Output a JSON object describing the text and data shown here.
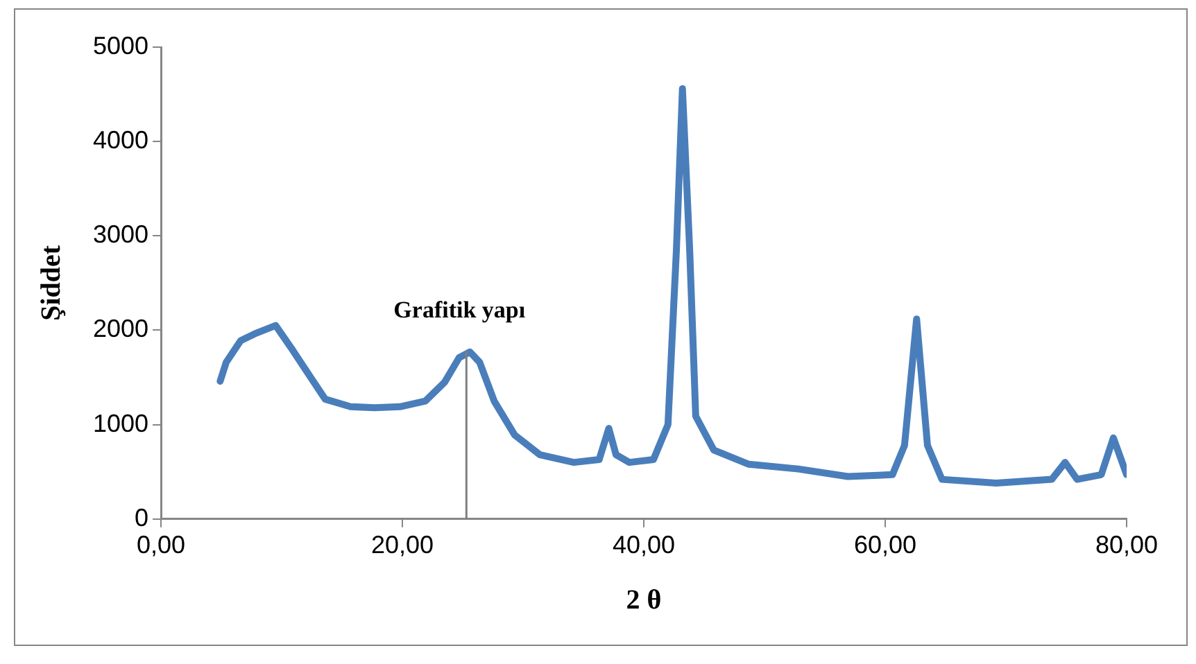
{
  "chart_data": {
    "type": "line",
    "xlabel": "2 θ",
    "ylabel": "Şiddet",
    "x": [
      4.9,
      5.4,
      6.6,
      7.9,
      9.5,
      10.8,
      12.4,
      13.6,
      15.7,
      17.7,
      19.8,
      21.9,
      23.5,
      24.7,
      25.6,
      26.4,
      27.6,
      29.3,
      31.4,
      34.2,
      36.3,
      37.1,
      37.7,
      38.8,
      40.8,
      42.0,
      42.7,
      43.2,
      43.8,
      44.3,
      45.8,
      48.7,
      52.8,
      56.9,
      60.6,
      61.6,
      62.6,
      63.5,
      64.7,
      69.2,
      73.8,
      74.9,
      75.9,
      77.9,
      78.9,
      80.0
    ],
    "series": [
      {
        "color": "#4a7ebb",
        "values": [
          1460,
          1660,
          1890,
          1970,
          2050,
          1810,
          1500,
          1270,
          1190,
          1180,
          1190,
          1250,
          1450,
          1710,
          1770,
          1660,
          1250,
          890,
          680,
          600,
          630,
          960,
          680,
          600,
          630,
          1000,
          2850,
          4560,
          2850,
          1090,
          730,
          580,
          530,
          450,
          470,
          780,
          2120,
          780,
          420,
          380,
          420,
          600,
          420,
          470,
          860,
          470
        ]
      }
    ],
    "xlim": [
      0,
      80
    ],
    "xticks": [
      {
        "value": 0,
        "label": "0,00"
      },
      {
        "value": 20,
        "label": "20,00"
      },
      {
        "value": 40,
        "label": "40,00"
      },
      {
        "value": 60,
        "label": "60,00"
      },
      {
        "value": 80,
        "label": "80,00"
      }
    ],
    "ylim": [
      0,
      5000
    ],
    "yticks": [
      0,
      1000,
      2000,
      3000,
      4000,
      5000
    ],
    "grid": false,
    "legend": false,
    "marker": "none",
    "line_style": "solid",
    "annotations": [
      {
        "text": "Grafitik yapı",
        "x": 25.3,
        "y": 1780
      }
    ]
  }
}
